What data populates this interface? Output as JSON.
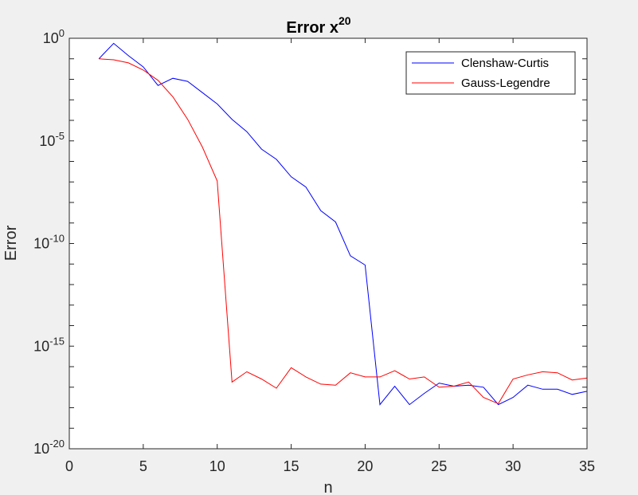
{
  "chart_data": {
    "type": "line",
    "title": "Error x",
    "title_superscript": "20",
    "xlabel": "n",
    "ylabel": "Error",
    "xlim": [
      0,
      35
    ],
    "ylim_log10": [
      -20,
      0
    ],
    "yscale": "log",
    "grid": false,
    "legend_position": "top-right",
    "xticks": [
      0,
      5,
      10,
      15,
      20,
      25,
      30,
      35
    ],
    "xtick_labels": [
      "0",
      "5",
      "10",
      "15",
      "20",
      "25",
      "30",
      "35"
    ],
    "yticks_log10": [
      0,
      -5,
      -10,
      -15,
      -20
    ],
    "ytick_labels": [
      {
        "base": "10",
        "exp": "0"
      },
      {
        "base": "10",
        "exp": "-5"
      },
      {
        "base": "10",
        "exp": "-10"
      },
      {
        "base": "10",
        "exp": "-15"
      },
      {
        "base": "10",
        "exp": "-20"
      }
    ],
    "x": [
      2,
      3,
      4,
      5,
      6,
      7,
      8,
      9,
      10,
      11,
      12,
      13,
      14,
      15,
      16,
      17,
      18,
      19,
      20,
      21,
      22,
      23,
      24,
      25,
      26,
      27,
      28,
      29,
      30,
      31,
      32,
      33,
      34,
      35
    ],
    "series": [
      {
        "name": "Clenshaw-Curtis",
        "color": "#0000ff",
        "log10_values": [
          -1.0,
          -0.25,
          -0.85,
          -1.4,
          -2.3,
          -1.95,
          -2.1,
          -2.65,
          -3.2,
          -3.95,
          -4.55,
          -5.4,
          -5.9,
          -6.75,
          -7.25,
          -8.4,
          -8.95,
          -10.6,
          -11.05,
          -17.85,
          -16.95,
          -17.85,
          -17.3,
          -16.8,
          -16.95,
          -16.9,
          -17.0,
          -17.85,
          -17.5,
          -16.9,
          -17.1,
          -17.1,
          -17.35,
          -17.2
        ]
      },
      {
        "name": "Gauss-Legendre",
        "color": "#ff0000",
        "log10_values": [
          -1.0,
          -1.05,
          -1.2,
          -1.55,
          -2.05,
          -2.85,
          -3.95,
          -5.3,
          -6.95,
          -16.75,
          -16.25,
          -16.6,
          -17.05,
          -16.05,
          -16.5,
          -16.85,
          -16.9,
          -16.3,
          -16.5,
          -16.5,
          -16.2,
          -16.6,
          -16.5,
          -17.0,
          -16.95,
          -16.75,
          -17.5,
          -17.8,
          -16.6,
          -16.4,
          -16.25,
          -16.3,
          -16.65,
          -16.55
        ]
      }
    ]
  }
}
